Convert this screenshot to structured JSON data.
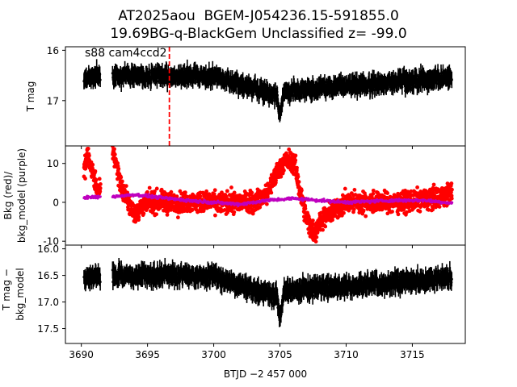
{
  "title_line1": "AT2025aou  BGEM-J054236.15-591855.0",
  "title_line2": "19.69BG-q-BlackGem Unclassified z= -99.0",
  "chart_data": [
    {
      "type": "scatter",
      "panel": "top",
      "ylabel": "T mag",
      "y_inverted": true,
      "ylim": [
        17.9,
        15.93
      ],
      "xlim": [
        3688.8,
        3719.0
      ],
      "yticks": [
        16,
        17
      ],
      "annotation": "s88 cam4ccd2",
      "vline_x": 3696.65,
      "vline_style": "red dashed",
      "series": [
        {
          "color": "#000000",
          "x": [
            3690.2,
            3691.4,
            3692.4,
            3700.0,
            3704.8,
            3705.0,
            3705.3,
            3718.0
          ],
          "y": [
            16.55,
            16.5,
            16.5,
            16.52,
            16.9,
            17.3,
            16.8,
            16.55
          ]
        }
      ]
    },
    {
      "type": "scatter",
      "panel": "middle",
      "ylabel": "Bkg (red)/ bkg_model (purple)",
      "ylim": [
        -11,
        14.5
      ],
      "xlim": [
        3688.8,
        3719.0
      ],
      "yticks": [
        -10,
        0,
        10
      ],
      "series": [
        {
          "color": "#ff0000",
          "x": [
            3690.2,
            3690.5,
            3691.0,
            3691.3,
            3692.4,
            3692.7,
            3693.1,
            3693.6,
            3694.0,
            3695.0,
            3697.0,
            3700.0,
            3703.0,
            3704.0,
            3704.8,
            3705.5,
            3706.1,
            3706.5,
            3707.0,
            3707.6,
            3708.2,
            3710.0,
            3714.0,
            3717.0,
            3718.0
          ],
          "y": [
            8,
            12,
            6,
            2,
            13,
            9,
            3,
            0,
            -3,
            0,
            0,
            0,
            0,
            2,
            8,
            11,
            10,
            3,
            -4,
            -8,
            -4,
            0,
            0,
            1,
            3
          ]
        },
        {
          "color": "#bf00bf",
          "x": [
            3690.2,
            3691.5,
            3692.5,
            3694.0,
            3696.0,
            3698.0,
            3700.0,
            3702.0,
            3704.0,
            3706.0,
            3708.0,
            3710.0,
            3712.0,
            3714.0,
            3716.0,
            3718.0
          ],
          "y": [
            1.2,
            1.4,
            1.5,
            2.0,
            1.2,
            0.5,
            0.0,
            -0.5,
            0.5,
            1.0,
            0.5,
            0.0,
            0.3,
            0.5,
            0.5,
            -0.2
          ]
        }
      ]
    },
    {
      "type": "scatter",
      "panel": "bottom",
      "ylabel": "T mag − bkg_model",
      "y_inverted": true,
      "ylim": [
        17.78,
        15.93
      ],
      "xlim": [
        3688.8,
        3719.0
      ],
      "yticks": [
        16.0,
        16.5,
        17.0,
        17.5
      ],
      "xticks": [
        3690,
        3695,
        3700,
        3705,
        3710,
        3715
      ],
      "xlabel": "BTJD −2 457 000",
      "series": [
        {
          "color": "#000000",
          "x": [
            3690.2,
            3691.4,
            3692.4,
            3700.0,
            3704.8,
            3705.0,
            3705.3,
            3718.0
          ],
          "y": [
            16.55,
            16.5,
            16.5,
            16.52,
            16.9,
            17.3,
            16.8,
            16.55
          ]
        }
      ]
    }
  ]
}
